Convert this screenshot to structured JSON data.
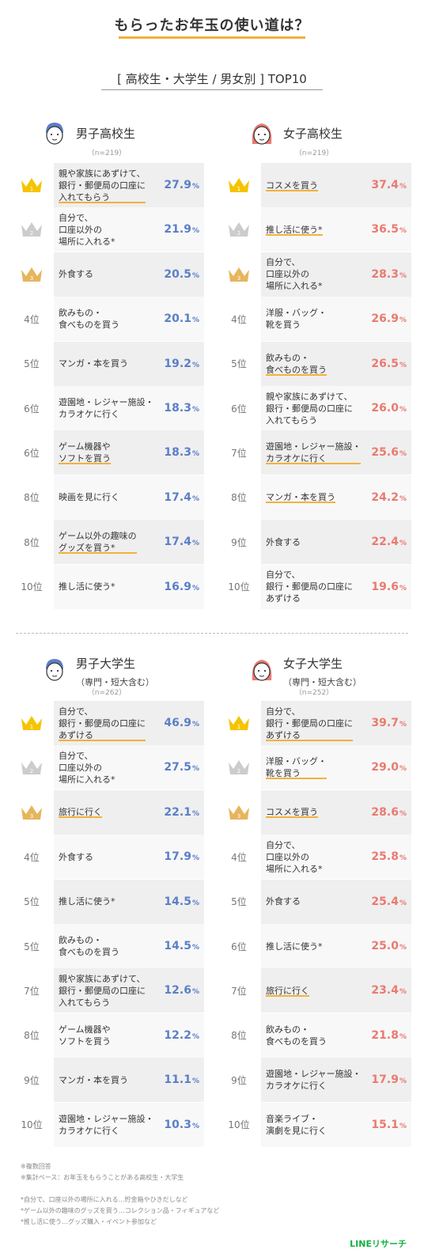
{
  "title": "もらったお年玉の使い道は？",
  "subtitle": "[ 高校生・大学生 / 男女別 ] TOP10",
  "colors": {
    "accent": "#f2b13d",
    "male": "#5b7fc8",
    "female": "#ea7a70",
    "gold": "#f5c400",
    "silver": "#cccccc",
    "bronze": "#e6b55c"
  },
  "chart_data": [
    {
      "type": "table",
      "title": "男子高校生",
      "subtitle": "",
      "n": "（n=219）",
      "icon": "boy-highschool-avatar-icon",
      "color": "male",
      "rows": [
        {
          "rank": "1",
          "rank_label": "",
          "label": "親や家族にあずけて、\n銀行・郵便局の口座に\n入れてもらう",
          "value": 27.9,
          "highlight": true
        },
        {
          "rank": "2",
          "rank_label": "",
          "label": "自分で、\n口座以外の\n場所に入れる*",
          "value": 21.9,
          "highlight": false
        },
        {
          "rank": "3",
          "rank_label": "",
          "label": "外食する",
          "value": 20.5,
          "highlight": false
        },
        {
          "rank": "4",
          "rank_label": "4位",
          "label": "飲みもの・\n食べものを買う",
          "value": 20.1,
          "highlight": false
        },
        {
          "rank": "5",
          "rank_label": "5位",
          "label": "マンガ・本を買う",
          "value": 19.2,
          "highlight": false
        },
        {
          "rank": "6",
          "rank_label": "6位",
          "label": "遊園地・レジャー施設・\nカラオケに行く",
          "value": 18.3,
          "highlight": false
        },
        {
          "rank": "6",
          "rank_label": "6位",
          "label": "ゲーム機器や\nソフトを買う",
          "value": 18.3,
          "highlight": true
        },
        {
          "rank": "8",
          "rank_label": "8位",
          "label": "映画を見に行く",
          "value": 17.4,
          "highlight": false
        },
        {
          "rank": "8",
          "rank_label": "8位",
          "label": "ゲーム以外の趣味の\nグッズを買う*",
          "value": 17.4,
          "highlight": true
        },
        {
          "rank": "10",
          "rank_label": "10位",
          "label": "推し活に使う*",
          "value": 16.9,
          "highlight": false
        }
      ]
    },
    {
      "type": "table",
      "title": "女子高校生",
      "subtitle": "",
      "n": "（n=219）",
      "icon": "girl-highschool-avatar-icon",
      "color": "female",
      "rows": [
        {
          "rank": "1",
          "rank_label": "",
          "label": "コスメを買う",
          "value": 37.4,
          "highlight": true
        },
        {
          "rank": "2",
          "rank_label": "",
          "label": "推し活に使う*",
          "value": 36.5,
          "highlight": true
        },
        {
          "rank": "3",
          "rank_label": "",
          "label": "自分で、\n口座以外の\n場所に入れる*",
          "value": 28.3,
          "highlight": false
        },
        {
          "rank": "4",
          "rank_label": "4位",
          "label": "洋服・バッグ・\n靴を買う",
          "value": 26.9,
          "highlight": false
        },
        {
          "rank": "5",
          "rank_label": "5位",
          "label": "飲みもの・\n食べものを買う",
          "value": 26.5,
          "highlight": true
        },
        {
          "rank": "6",
          "rank_label": "6位",
          "label": "親や家族にあずけて、\n銀行・郵便局の口座に\n入れてもらう",
          "value": 26.0,
          "highlight": false
        },
        {
          "rank": "7",
          "rank_label": "7位",
          "label": "遊園地・レジャー施設・\nカラオケに行く",
          "value": 25.6,
          "highlight": true
        },
        {
          "rank": "8",
          "rank_label": "8位",
          "label": "マンガ・本を買う",
          "value": 24.2,
          "highlight": true
        },
        {
          "rank": "9",
          "rank_label": "9位",
          "label": "外食する",
          "value": 22.4,
          "highlight": false
        },
        {
          "rank": "10",
          "rank_label": "10位",
          "label": "自分で、\n銀行・郵便局の口座に\nあずける",
          "value": 19.6,
          "highlight": false
        }
      ]
    },
    {
      "type": "table",
      "title": "男子大学生",
      "subtitle": "（専門・短大含む）",
      "n": "（n=262）",
      "icon": "boy-university-avatar-icon",
      "color": "male",
      "rows": [
        {
          "rank": "1",
          "rank_label": "",
          "label": "自分で、\n銀行・郵便局の口座に\nあずける",
          "value": 46.9,
          "highlight": true
        },
        {
          "rank": "2",
          "rank_label": "",
          "label": "自分で、\n口座以外の\n場所に入れる*",
          "value": 27.5,
          "highlight": false
        },
        {
          "rank": "3",
          "rank_label": "",
          "label": "旅行に行く",
          "value": 22.1,
          "highlight": true
        },
        {
          "rank": "4",
          "rank_label": "4位",
          "label": "外食する",
          "value": 17.9,
          "highlight": false
        },
        {
          "rank": "5",
          "rank_label": "5位",
          "label": "推し活に使う*",
          "value": 14.5,
          "highlight": false
        },
        {
          "rank": "5",
          "rank_label": "5位",
          "label": "飲みもの・\n食べものを買う",
          "value": 14.5,
          "highlight": false
        },
        {
          "rank": "7",
          "rank_label": "7位",
          "label": "親や家族にあずけて、\n銀行・郵便局の口座に\n入れてもらう",
          "value": 12.6,
          "highlight": false
        },
        {
          "rank": "8",
          "rank_label": "8位",
          "label": "ゲーム機器や\nソフトを買う",
          "value": 12.2,
          "highlight": false
        },
        {
          "rank": "9",
          "rank_label": "9位",
          "label": "マンガ・本を買う",
          "value": 11.1,
          "highlight": false
        },
        {
          "rank": "10",
          "rank_label": "10位",
          "label": "遊園地・レジャー施設・\nカラオケに行く",
          "value": 10.3,
          "highlight": false
        }
      ]
    },
    {
      "type": "table",
      "title": "女子大学生",
      "subtitle": "（専門・短大含む）",
      "n": "（n=252）",
      "icon": "girl-university-avatar-icon",
      "color": "female",
      "rows": [
        {
          "rank": "1",
          "rank_label": "",
          "label": "自分で、\n銀行・郵便局の口座に\nあずける",
          "value": 39.7,
          "highlight": true
        },
        {
          "rank": "2",
          "rank_label": "",
          "label": "洋服・バッグ・\n靴を買う",
          "value": 29.0,
          "highlight": true
        },
        {
          "rank": "3",
          "rank_label": "",
          "label": "コスメを買う",
          "value": 28.6,
          "highlight": true
        },
        {
          "rank": "4",
          "rank_label": "4位",
          "label": "自分で、\n口座以外の\n場所に入れる*",
          "value": 25.8,
          "highlight": false
        },
        {
          "rank": "5",
          "rank_label": "5位",
          "label": "外食する",
          "value": 25.4,
          "highlight": false
        },
        {
          "rank": "6",
          "rank_label": "6位",
          "label": "推し活に使う*",
          "value": 25.0,
          "highlight": false
        },
        {
          "rank": "7",
          "rank_label": "7位",
          "label": "旅行に行く",
          "value": 23.4,
          "highlight": true
        },
        {
          "rank": "8",
          "rank_label": "8位",
          "label": "飲みもの・\n食べものを買う",
          "value": 21.8,
          "highlight": false
        },
        {
          "rank": "9",
          "rank_label": "9位",
          "label": "遊園地・レジャー施設・\nカラオケに行く",
          "value": 17.9,
          "highlight": false
        },
        {
          "rank": "10",
          "rank_label": "10位",
          "label": "音楽ライブ・\n演劇を見に行く",
          "value": 15.1,
          "highlight": false
        }
      ]
    }
  ],
  "unit": "%",
  "notes": [
    "※複数回答",
    "※集計ベース：お年玉をもらうことがある高校生・大学生",
    "",
    "*自分で、口座以外の場所に入れる…貯金箱やひきだしなど",
    "*ゲーム以外の趣味のグッズを買う…コレクション品・フィギュアなど",
    "*推し活に使う…グッズ購入・イベント参加など"
  ],
  "logo": "LINEリサーチ"
}
